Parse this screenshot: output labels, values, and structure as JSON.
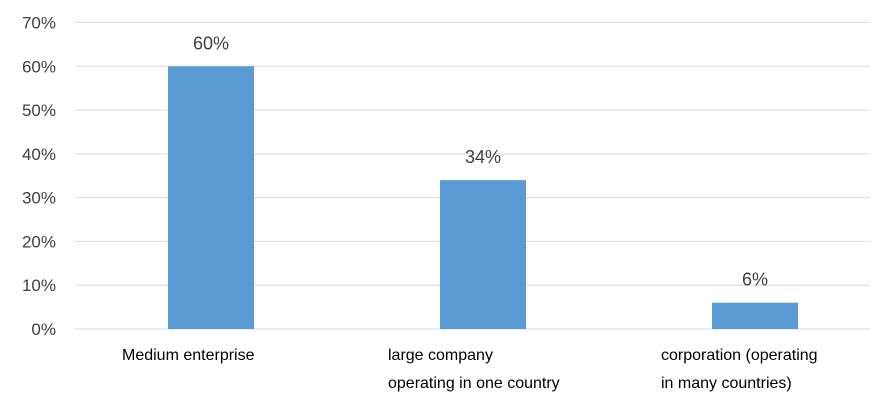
{
  "chart_data": {
    "type": "bar",
    "title": "",
    "xlabel": "",
    "ylabel": "",
    "categories": [
      [
        "Medium enterprise"
      ],
      [
        "large company",
        "operating in one country"
      ],
      [
        "corporation (operating",
        "in many countries)"
      ]
    ],
    "values": [
      60,
      34,
      6
    ],
    "data_labels": [
      "60%",
      "34%",
      "6%"
    ],
    "ylim": [
      0,
      70
    ],
    "y_ticks": [
      "0%",
      "10%",
      "20%",
      "30%",
      "40%",
      "50%",
      "60%",
      "70%"
    ],
    "y_tick_values": [
      0,
      10,
      20,
      30,
      40,
      50,
      60,
      70
    ],
    "grid": true,
    "legend": "none",
    "colors": {
      "bar": "#5B9BD5",
      "grid": "#D9D9D9",
      "text": "#404040"
    }
  }
}
